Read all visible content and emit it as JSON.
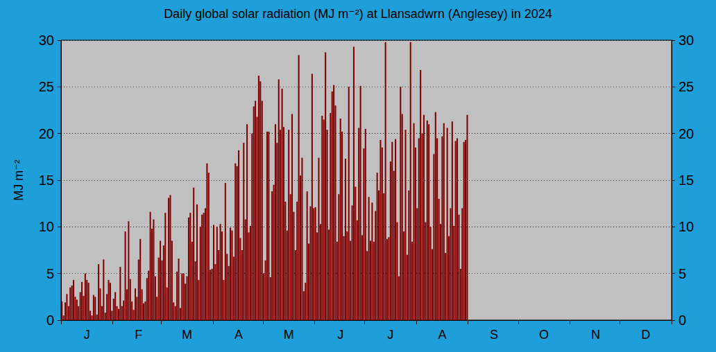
{
  "chart_data": {
    "type": "bar",
    "title": "Daily global solar radiation (MJ m⁻²) at Llansadwrn (Anglesey) in 2024",
    "ylabel": "MJ m⁻²",
    "color": "#800000",
    "ylim": [
      0,
      30
    ],
    "yticks": [
      0,
      5,
      10,
      15,
      20,
      25,
      30
    ],
    "grid": true,
    "categories": [
      null,
      null,
      null,
      null,
      null,
      null,
      null,
      null,
      null,
      null,
      null,
      null,
      null,
      null,
      null,
      "J",
      null,
      null,
      null,
      null,
      null,
      null,
      null,
      null,
      null,
      null,
      null,
      null,
      null,
      null,
      null,
      null,
      null,
      null,
      null,
      null,
      null,
      null,
      null,
      null,
      null,
      null,
      null,
      null,
      null,
      null,
      "F",
      null,
      null,
      null,
      null,
      null,
      null,
      null,
      null,
      null,
      null,
      null,
      null,
      null,
      null,
      null,
      null,
      null,
      null,
      null,
      null,
      null,
      null,
      null,
      null,
      null,
      null,
      null,
      null,
      "M",
      null,
      null,
      null,
      null,
      null,
      null,
      null,
      null,
      null,
      null,
      null,
      null,
      null,
      null,
      null,
      null,
      null,
      null,
      null,
      null,
      null,
      null,
      null,
      null,
      null,
      null,
      null,
      null,
      null,
      null,
      "A",
      null,
      null,
      null,
      null,
      null,
      null,
      null,
      null,
      null,
      null,
      null,
      null,
      null,
      null,
      null,
      null,
      null,
      null,
      null,
      null,
      null,
      null,
      null,
      null,
      null,
      null,
      null,
      null,
      null,
      "M",
      null,
      null,
      null,
      null,
      null,
      null,
      null,
      null,
      null,
      null,
      null,
      null,
      null,
      null,
      null,
      null,
      null,
      null,
      null,
      null,
      null,
      null,
      null,
      null,
      null,
      null,
      null,
      null,
      null,
      null,
      "J",
      null,
      null,
      null,
      null,
      null,
      null,
      null,
      null,
      null,
      null,
      null,
      null,
      null,
      null,
      null,
      null,
      null,
      null,
      null,
      null,
      null,
      null,
      null,
      null,
      null,
      null,
      null,
      null,
      null,
      "J",
      null,
      null,
      null,
      null,
      null,
      null,
      null,
      null,
      null,
      null,
      null,
      null,
      null,
      null,
      null,
      null,
      null,
      null,
      null,
      null,
      null,
      null,
      null,
      null,
      null,
      null,
      null,
      null,
      null,
      null,
      "A",
      null,
      null,
      null,
      null,
      null,
      null,
      null,
      null,
      null,
      null,
      null,
      null,
      null,
      null,
      null,
      null,
      null,
      null,
      null,
      null,
      null,
      null,
      null,
      null,
      null,
      null,
      null,
      null,
      null,
      null,
      "S",
      null,
      null,
      null,
      null,
      null,
      null,
      null,
      null,
      null,
      null,
      null,
      null,
      null,
      null,
      null,
      null,
      null,
      null,
      null,
      null,
      null,
      null,
      null,
      null,
      null,
      null,
      null,
      null,
      null,
      "O",
      null,
      null,
      null,
      null,
      null,
      null,
      null,
      null,
      null,
      null,
      null,
      null,
      null,
      null,
      null,
      null,
      null,
      null,
      null,
      null,
      null,
      null,
      null,
      null,
      null,
      null,
      null,
      null,
      null,
      null,
      "N",
      null,
      null,
      null,
      null,
      null,
      null,
      null,
      null,
      null,
      null,
      null,
      null,
      null,
      null,
      null,
      null,
      null,
      null,
      null,
      null,
      null,
      null,
      null,
      null,
      null,
      null,
      null,
      null,
      null,
      "D",
      null,
      null,
      null,
      null,
      null,
      null,
      null,
      null,
      null,
      null,
      null,
      null,
      null,
      null,
      null
    ],
    "values": [
      2.0,
      0.5,
      1.9,
      2.8,
      1.5,
      3.5,
      3.7,
      4.3,
      2.5,
      2.2,
      1.5,
      3.0,
      4.1,
      2.6,
      5.0,
      4.3,
      4.0,
      1.0,
      0.5,
      2.7,
      2.5,
      0.6,
      6.0,
      3.4,
      1.5,
      6.5,
      0.8,
      2.8,
      4.3,
      4.0,
      1.0,
      2.3,
      3.0,
      1.5,
      1.2,
      5.7,
      1.5,
      2.1,
      9.5,
      3.3,
      10.6,
      4.4,
      2.0,
      1.1,
      3.4,
      2.5,
      6.5,
      8.7,
      3.3,
      1.8,
      2.0,
      4.5,
      5.3,
      11.6,
      9.8,
      10.8,
      4.7,
      2.5,
      6.7,
      8.5,
      6.4,
      8.0,
      11.5,
      3.5,
      13.1,
      13.4,
      8.5,
      1.9,
      1.5,
      5.2,
      6.6,
      1.3,
      5.0,
      5.0,
      3.9,
      4.7,
      11.0,
      11.5,
      8.4,
      14.2,
      6.3,
      12.4,
      4.3,
      10.0,
      11.3,
      11.5,
      12.0,
      16.8,
      15.8,
      5.4,
      5.5,
      10.2,
      6.0,
      10.0,
      7.5,
      10.3,
      9.5,
      4.3,
      14.7,
      7.1,
      5.8,
      9.9,
      9.6,
      6.8,
      16.8,
      16.5,
      18.2,
      8.8,
      7.5,
      19.0,
      10.8,
      21.0,
      9.4,
      10.1,
      20.0,
      22.9,
      23.5,
      21.8,
      26.2,
      25.6,
      23.5,
      5.0,
      6.4,
      20.2,
      20.2,
      4.6,
      13.8,
      14.5,
      21.0,
      19.0,
      25.8,
      20.4,
      24.8,
      20.7,
      12.7,
      9.6,
      20.4,
      13.5,
      22.1,
      11.6,
      7.5,
      12.7,
      28.4,
      15.5,
      17.4,
      3.1,
      4.0,
      13.8,
      8.2,
      12.2,
      26.4,
      12.0,
      12.1,
      9.4,
      17.4,
      10.3,
      21.9,
      21.5,
      28.7,
      20.4,
      9.7,
      22.2,
      24.5,
      25.2,
      23.0,
      8.4,
      13.5,
      21.6,
      20.2,
      9.0,
      17.3,
      9.5,
      25.0,
      8.5,
      12.3,
      29.3,
      14.3,
      10.7,
      20.6,
      25.1,
      9.1,
      18.4,
      20.5,
      7.4,
      13.2,
      8.5,
      12.6,
      8.4,
      11.7,
      15.8,
      13.9,
      19.3,
      18.5,
      13.6,
      29.8,
      8.7,
      8.9,
      17.0,
      19.1,
      16.0,
      19.4,
      10.5,
      4.7,
      25.0,
      22.1,
      9.5,
      20.4,
      7.0,
      13.9,
      29.8,
      8.4,
      21.1,
      18.5,
      12.0,
      19.5,
      26.8,
      20.0,
      22.0,
      10.5,
      21.4,
      21.0,
      10.0,
      7.6,
      17.8,
      22.3,
      19.5,
      13.0,
      10.3,
      19.7,
      21.1,
      7.2,
      20.6,
      9.0,
      12.0,
      21.3,
      10.1,
      19.2,
      19.5,
      11.3,
      5.5,
      12.0,
      19.1,
      19.3,
      22.0,
      null,
      null,
      null,
      null,
      null,
      null,
      null,
      null,
      null,
      null,
      null,
      null,
      null,
      null,
      null,
      null,
      null,
      null,
      null,
      null,
      null,
      null,
      null,
      null,
      null,
      null,
      null,
      null,
      null,
      null,
      null,
      null,
      null,
      null,
      null,
      null,
      null,
      null,
      null,
      null,
      null,
      null,
      null,
      null,
      null,
      null,
      null,
      null,
      null,
      null,
      null,
      null,
      null,
      null,
      null,
      null,
      null,
      null,
      null,
      null,
      null,
      null,
      null,
      null,
      null,
      null,
      null,
      null,
      null,
      null,
      null,
      null,
      null,
      null,
      null,
      null,
      null,
      null,
      null,
      null,
      null,
      null,
      null,
      null,
      null,
      null,
      null,
      null,
      null,
      null,
      null,
      null,
      null,
      null,
      null,
      null,
      null,
      null,
      null,
      null,
      null,
      null,
      null,
      null,
      null,
      null,
      null,
      null,
      null,
      null,
      null,
      null,
      null,
      null,
      null,
      null,
      null,
      null,
      null,
      null,
      null,
      null
    ]
  }
}
